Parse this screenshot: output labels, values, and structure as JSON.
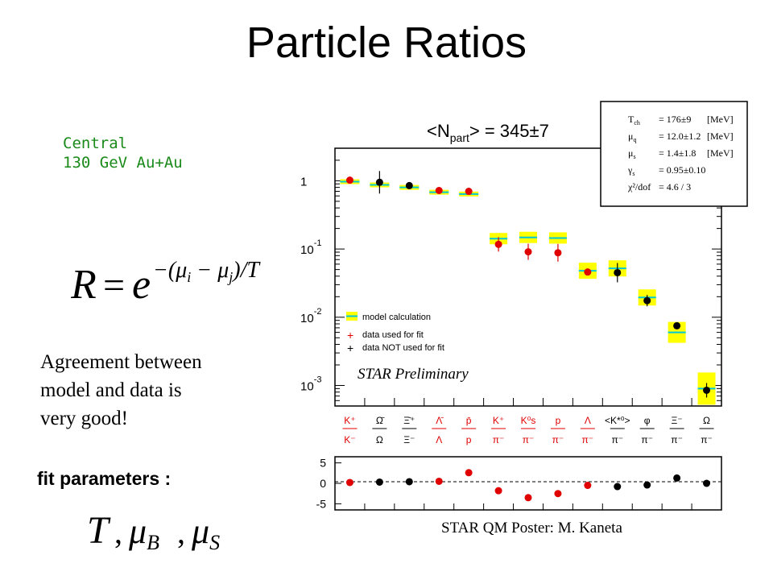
{
  "slide": {
    "title": "Particle Ratios",
    "system": [
      "Central",
      "130 GeV Au+Au"
    ],
    "formula": {
      "lhs": "R",
      "eq": "=",
      "base": "e",
      "exponent": "−(μ",
      "sub_i": "i",
      "minus": " − μ",
      "sub_j": "j",
      "tail": ")/T"
    },
    "agreement_text": [
      "Agreement between",
      "model and data is",
      "very good!"
    ],
    "fit_label": "fit parameters :",
    "fit_params": {
      "t": "T",
      "sep": ",",
      "mu": "μ",
      "sub_b": "B",
      "sub_s": "S"
    },
    "credit": "STAR QM Poster: M. Kaneta"
  },
  "chart_data": [
    {
      "type": "scatter",
      "title": "<N",
      "title_sub": "part",
      "title_tail": "> = 345±7",
      "yscale": "log",
      "ylim": [
        0.0005,
        3
      ],
      "y_ticks": [
        {
          "value": 1,
          "base": "1",
          "exp": ""
        },
        {
          "value": 0.1,
          "base": "10",
          "exp": "-1"
        },
        {
          "value": 0.01,
          "base": "10",
          "exp": "-2"
        },
        {
          "value": 0.001,
          "base": "10",
          "exp": "-3"
        }
      ],
      "categories": [
        {
          "num": "K⁺",
          "den": "K⁻",
          "color": "#e00000"
        },
        {
          "num": "Ω̄",
          "den": "Ω",
          "color": "#000000"
        },
        {
          "num": "Ξ̄⁺",
          "den": "Ξ⁻",
          "color": "#000000"
        },
        {
          "num": "Λ̄",
          "den": "Λ",
          "color": "#e00000"
        },
        {
          "num": "p̄",
          "den": "p",
          "color": "#e00000"
        },
        {
          "num": "K⁺",
          "den": "π⁻",
          "color": "#e00000"
        },
        {
          "num": "K⁰s",
          "den": "π⁻",
          "color": "#e00000"
        },
        {
          "num": "p",
          "den": "π⁻",
          "color": "#e00000"
        },
        {
          "num": "Λ",
          "den": "π⁻",
          "color": "#e00000"
        },
        {
          "num": "<K*⁰>",
          "den": "π⁻",
          "color": "#000000"
        },
        {
          "num": "φ",
          "den": "π⁻",
          "color": "#000000"
        },
        {
          "num": "Ξ⁻",
          "den": "π⁻",
          "color": "#000000"
        },
        {
          "num": "Ω",
          "den": "π⁻",
          "color": "#000000"
        }
      ],
      "series": [
        {
          "name": "model calculation",
          "values": [
            0.97,
            0.87,
            0.8,
            0.68,
            0.64,
            0.142,
            0.148,
            0.145,
            0.048,
            0.052,
            0.0195,
            0.006,
            0.0009
          ],
          "color": "#00c8d8",
          "band": "#ffff00"
        },
        {
          "name": "data used for fit",
          "values": [
            1.02,
            null,
            null,
            0.72,
            0.7,
            0.117,
            0.091,
            0.088,
            0.046,
            null,
            null,
            null,
            null
          ],
          "color": "#e00000"
        },
        {
          "name": "data NOT used for fit",
          "values": [
            null,
            0.95,
            0.85,
            null,
            null,
            null,
            null,
            null,
            null,
            0.045,
            0.0175,
            0.0075,
            0.00085
          ],
          "color": "#000000"
        }
      ],
      "annotation": "STAR Preliminary",
      "fit_box": [
        {
          "sym": "T",
          "sub": "ch",
          "val": "= 176±9",
          "unit": "[MeV]"
        },
        {
          "sym": "μ",
          "sub": "q",
          "val": "= 12.0±1.2",
          "unit": "[MeV]"
        },
        {
          "sym": "μ",
          "sub": "s",
          "val": "= 1.4±1.8",
          "unit": "[MeV]"
        },
        {
          "sym": "γ",
          "sub": "s",
          "val": "= 0.95±0.10",
          "unit": ""
        },
        {
          "sym": "χ²/dof",
          "sub": "",
          "val": "= 4.6 / 3",
          "unit": ""
        }
      ],
      "legend": [
        {
          "marker": "band",
          "label": "model calculation"
        },
        {
          "marker": "+",
          "color": "#e00000",
          "label": "data used for fit"
        },
        {
          "marker": "+",
          "color": "#000000",
          "label": "data NOT used for fit"
        }
      ]
    },
    {
      "type": "scatter",
      "ylim": [
        -6.5,
        6.5
      ],
      "y_ticks": [
        5,
        0,
        -5
      ],
      "residuals": [
        0.2,
        0.3,
        0.4,
        0.5,
        2.6,
        -1.8,
        -3.5,
        -2.5,
        -0.5,
        -0.8,
        -0.4,
        1.3,
        0.0
      ],
      "colors": [
        "#e00000",
        "#000000",
        "#000000",
        "#e00000",
        "#e00000",
        "#e00000",
        "#e00000",
        "#e00000",
        "#e00000",
        "#000000",
        "#000000",
        "#000000",
        "#000000"
      ]
    }
  ]
}
